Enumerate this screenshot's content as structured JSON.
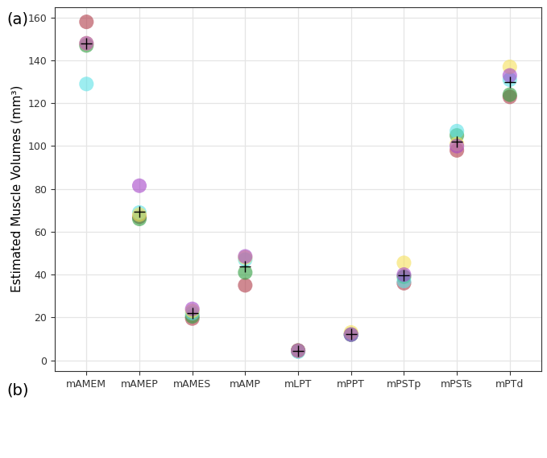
{
  "chart_data": {
    "type": "scatter",
    "panel_labels": [
      "(a)",
      "(b)"
    ],
    "y_label": "Estimated Muscle Volumes (mm³)",
    "categories": [
      "mAMEM",
      "mAMEP",
      "mAMES",
      "mAMP",
      "mLPT",
      "mPPT",
      "mPSTp",
      "mPSTs",
      "mPTd"
    ],
    "series": [
      {
        "color": "#b03a48",
        "marker": "circle",
        "values": [
          158,
          67,
          19.5,
          35,
          4.5,
          12,
          36,
          98,
          123
        ]
      },
      {
        "color": "#2e9e3e",
        "marker": "circle",
        "values": [
          147,
          66,
          20.5,
          41,
          4.5,
          12,
          39,
          105,
          124
        ]
      },
      {
        "color": "#5ce1e6",
        "marker": "circle",
        "values": [
          129,
          69,
          22,
          47,
          4,
          12,
          37,
          107,
          131
        ]
      },
      {
        "color": "#f5e05a",
        "marker": "circle",
        "values": [
          148,
          68,
          23,
          48,
          4.5,
          13,
          45.5,
          101,
          137
        ]
      },
      {
        "color": "#a545c8",
        "marker": "circle",
        "values": [
          148,
          81.5,
          24,
          48.5,
          4.5,
          12,
          40,
          100,
          133
        ]
      },
      {
        "color": "#000000",
        "marker": "plus",
        "values": [
          148,
          69.5,
          22,
          44,
          4.3,
          12.2,
          39.5,
          102,
          130
        ]
      }
    ],
    "ylim": [
      -5,
      165
    ],
    "yticks": [
      0,
      20,
      40,
      60,
      80,
      100,
      120,
      140,
      160
    ],
    "grid": true
  }
}
